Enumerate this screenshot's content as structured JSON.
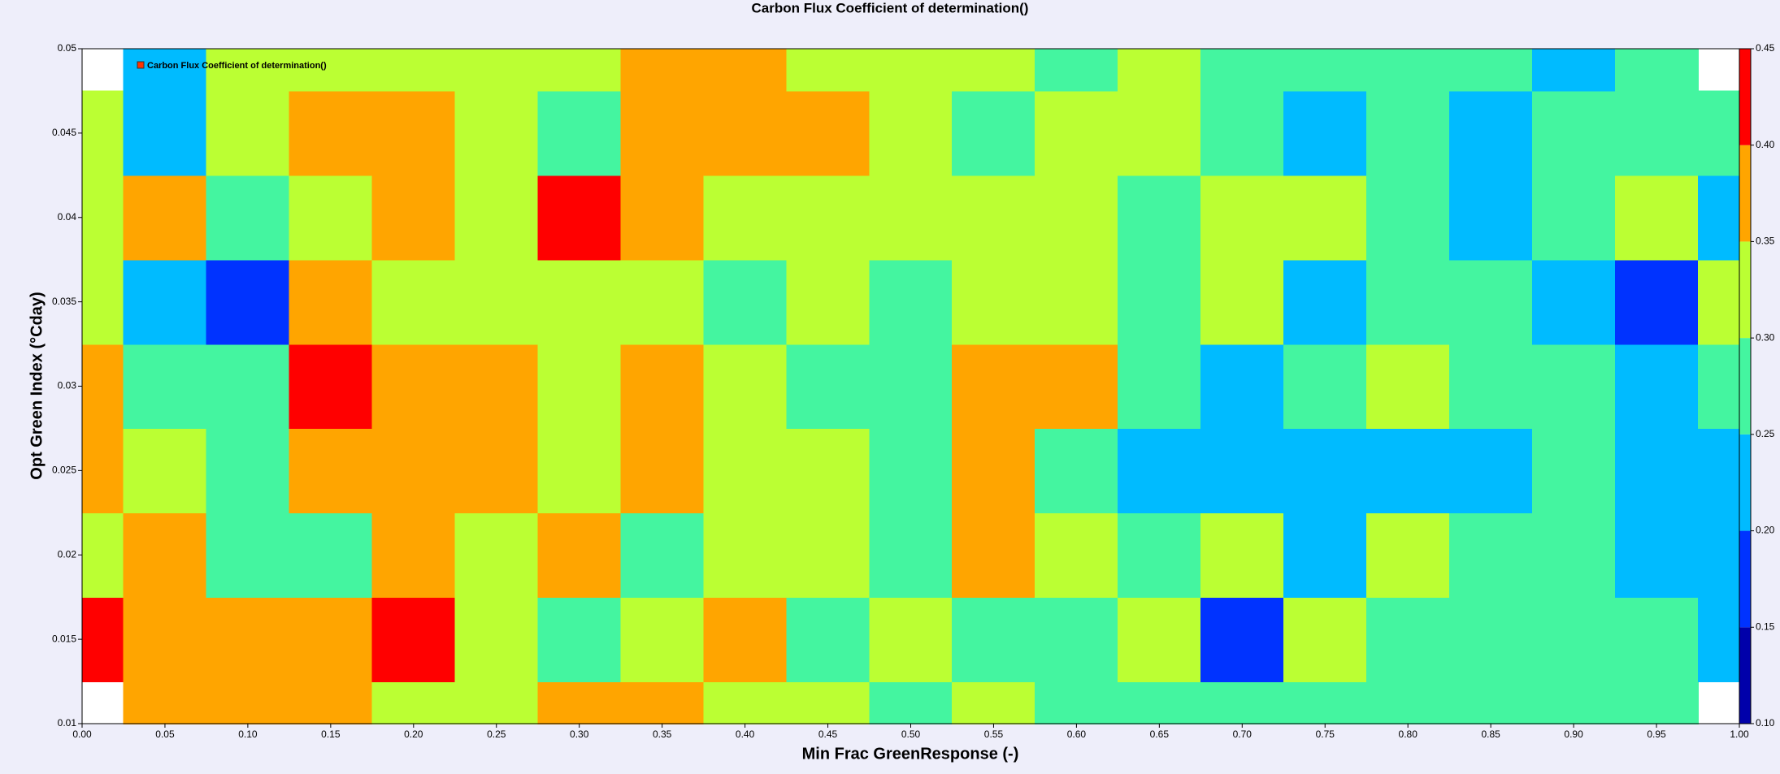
{
  "chart_data": {
    "type": "contour",
    "title": "Carbon Flux Coefficient of determination()",
    "series_name": "Carbon Flux Coefficient of determination()",
    "legend_color": "#ff3300",
    "legend": "top-left",
    "xlabel": "Min Frac GreenResponse (-)",
    "ylabel": "Opt Green Index (°Cday)",
    "x": [
      0,
      0.05,
      0.1,
      0.15,
      0.2,
      0.25,
      0.3,
      0.35,
      0.4,
      0.45,
      0.5,
      0.55,
      0.6,
      0.65,
      0.7,
      0.75,
      0.8,
      0.85,
      0.9,
      0.95,
      1
    ],
    "y": [
      0.01,
      0.015,
      0.02,
      0.025,
      0.03,
      0.035,
      0.04,
      0.045,
      0.05
    ],
    "z": [
      [
        null,
        0.36,
        0.37,
        0.36,
        0.34,
        0.33,
        0.37,
        0.36,
        0.31,
        0.32,
        0.29,
        0.3,
        0.27,
        0.29,
        0.28,
        0.27,
        0.26,
        0.27,
        0.29,
        0.28,
        null
      ],
      [
        0.41,
        0.37,
        0.36,
        0.37,
        0.42,
        0.33,
        0.27,
        0.32,
        0.36,
        0.28,
        0.31,
        0.29,
        0.26,
        0.31,
        0.18,
        0.31,
        0.29,
        0.28,
        0.26,
        0.26,
        0.23
      ],
      [
        0.33,
        0.37,
        0.29,
        0.26,
        0.38,
        0.33,
        0.36,
        0.29,
        0.31,
        0.33,
        0.29,
        0.36,
        0.31,
        0.29,
        0.34,
        0.2,
        0.34,
        0.29,
        0.26,
        0.23,
        0.22
      ],
      [
        0.37,
        0.33,
        0.26,
        0.37,
        0.36,
        0.38,
        0.31,
        0.37,
        0.33,
        0.31,
        0.28,
        0.38,
        0.27,
        0.24,
        0.24,
        0.23,
        0.22,
        0.23,
        0.28,
        0.21,
        0.23
      ],
      [
        0.37,
        0.28,
        0.26,
        0.41,
        0.37,
        0.38,
        0.33,
        0.36,
        0.33,
        0.27,
        0.29,
        0.37,
        0.37,
        0.27,
        0.24,
        0.28,
        0.3,
        0.26,
        0.25,
        0.23,
        0.28
      ],
      [
        0.34,
        0.24,
        0.17,
        0.37,
        0.34,
        0.32,
        0.34,
        0.33,
        0.28,
        0.31,
        0.28,
        0.32,
        0.32,
        0.29,
        0.3,
        0.23,
        0.29,
        0.28,
        0.23,
        0.19,
        0.31
      ],
      [
        0.33,
        0.36,
        0.29,
        0.32,
        0.37,
        0.34,
        0.41,
        0.37,
        0.33,
        0.33,
        0.31,
        0.33,
        0.31,
        0.28,
        0.33,
        0.3,
        0.27,
        0.22,
        0.26,
        0.31,
        0.24
      ],
      [
        0.32,
        0.23,
        0.33,
        0.36,
        0.36,
        0.33,
        0.28,
        0.37,
        0.36,
        0.37,
        0.3,
        0.27,
        0.32,
        0.33,
        0.29,
        0.24,
        0.27,
        0.23,
        0.29,
        0.27,
        0.28
      ],
      [
        null,
        0.24,
        0.32,
        0.31,
        0.33,
        0.32,
        0.34,
        0.37,
        0.37,
        0.33,
        0.32,
        0.31,
        0.29,
        0.32,
        0.28,
        0.29,
        0.26,
        0.27,
        0.24,
        0.26,
        null
      ]
    ],
    "levels": [
      {
        "value": 0.1,
        "label": "0.10"
      },
      0.15,
      {
        "value": 0.2,
        "label": "0.20"
      },
      0.25,
      {
        "value": 0.3,
        "label": "0.30"
      },
      0.35,
      {
        "value": 0.4,
        "label": "0.40"
      },
      0.45
    ],
    "colors": [
      "#0000aa",
      "#0033ff",
      "#00bbff",
      "#44f5a0",
      "#bbff33",
      "#ffa500",
      "#ff0000"
    ],
    "xlim": [
      0,
      1
    ],
    "ylim": [
      0.01,
      0.05
    ],
    "xticks": [
      {
        "value": 0,
        "label": "0.00"
      },
      0.05,
      {
        "value": 0.1,
        "label": "0.10"
      },
      0.15,
      {
        "value": 0.2,
        "label": "0.20"
      },
      0.25,
      {
        "value": 0.3,
        "label": "0.30"
      },
      0.35,
      {
        "value": 0.4,
        "label": "0.40"
      },
      0.45,
      {
        "value": 0.5,
        "label": "0.50"
      },
      0.55,
      {
        "value": 0.6,
        "label": "0.60"
      },
      0.65,
      {
        "value": 0.7,
        "label": "0.70"
      },
      0.75,
      {
        "value": 0.8,
        "label": "0.80"
      },
      0.85,
      {
        "value": 0.9,
        "label": "0.90"
      },
      0.95,
      {
        "value": 1,
        "label": "1.00"
      }
    ],
    "yticks": [
      0.01,
      0.015,
      0.02,
      0.025,
      0.03,
      0.035,
      0.04,
      0.045,
      0.05
    ]
  }
}
